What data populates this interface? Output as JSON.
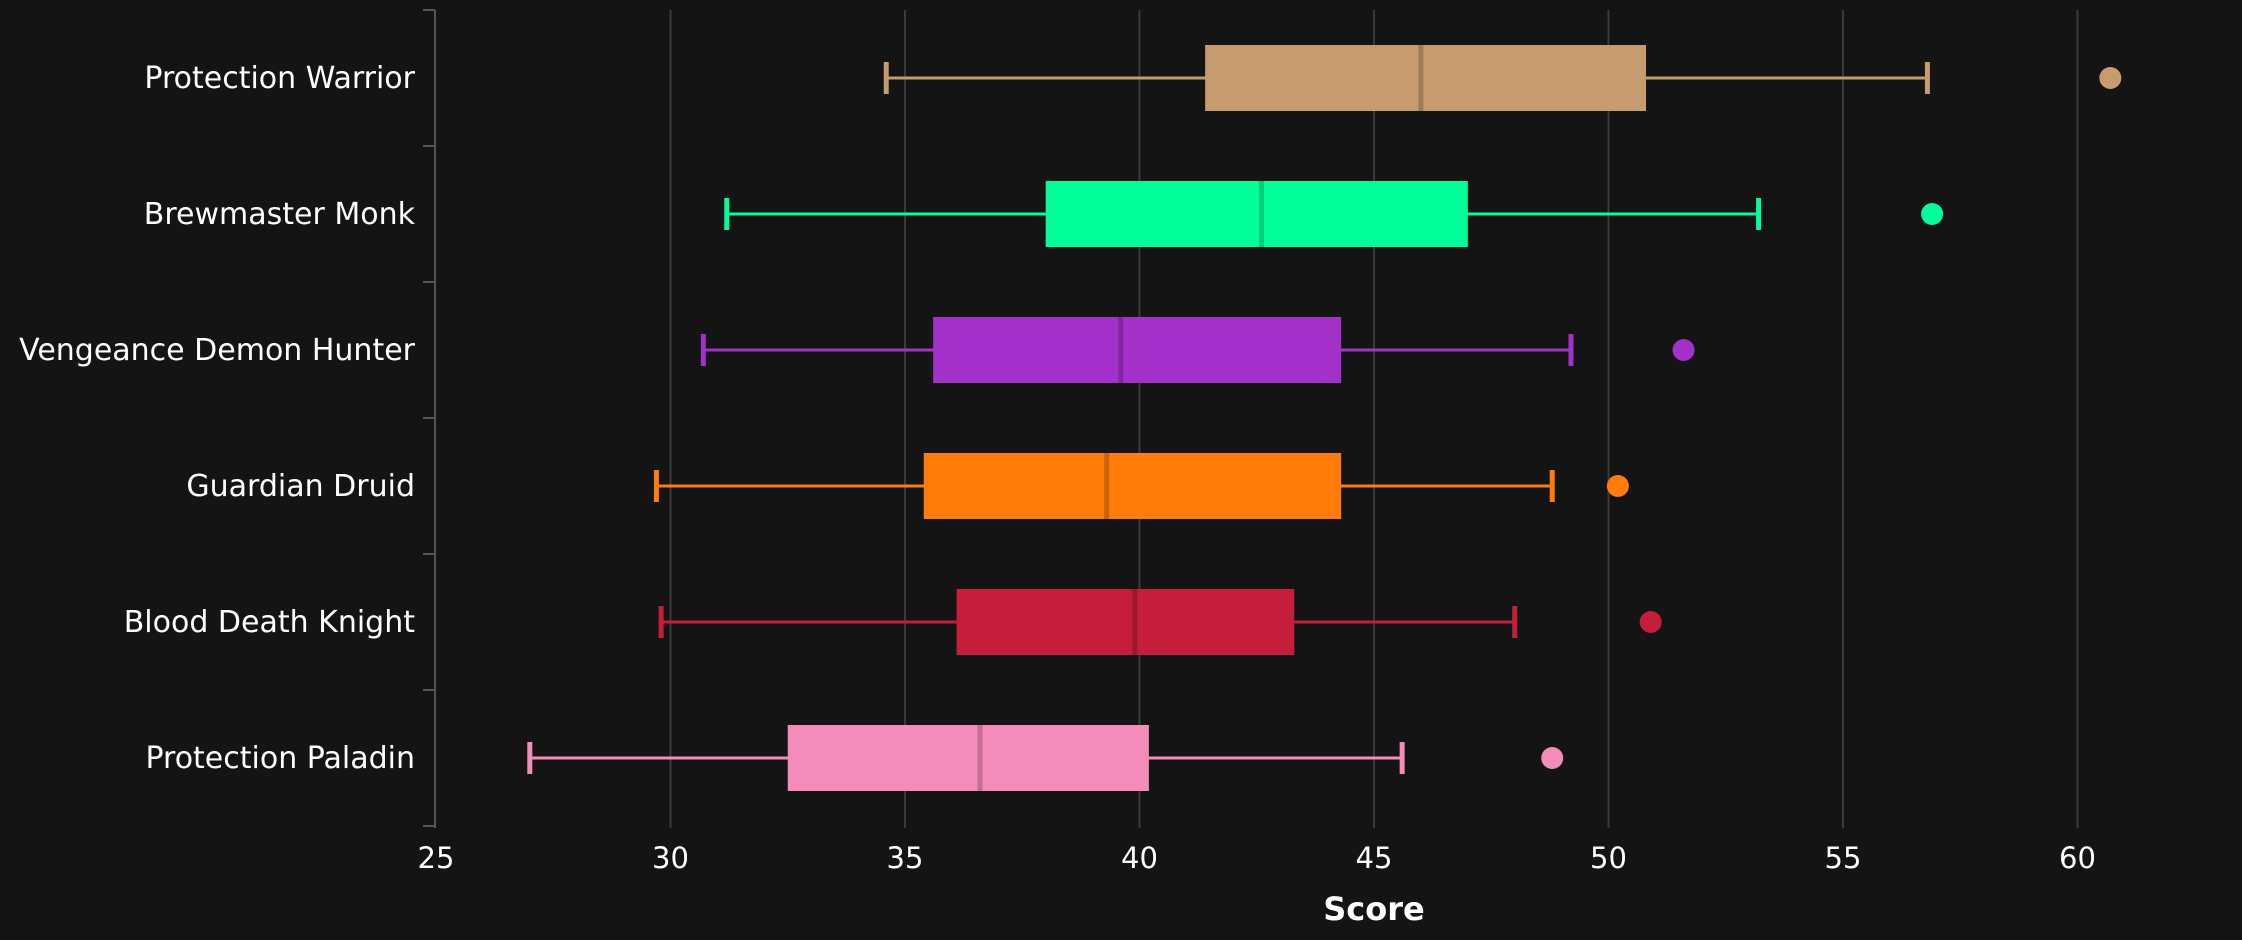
{
  "chart_data": {
    "type": "boxplot",
    "orientation": "horizontal",
    "xlabel": "Score",
    "xlim": [
      25,
      62.5
    ],
    "xticks": [
      25,
      30,
      35,
      40,
      45,
      50,
      55,
      60
    ],
    "grid": true,
    "categories": [
      "Protection Warrior",
      "Brewmaster Monk",
      "Vengeance Demon Hunter",
      "Guardian Druid",
      "Blood Death Knight",
      "Protection Paladin"
    ],
    "series": [
      {
        "label": "Protection Warrior",
        "color": "#C69B6D",
        "median_color": "#9E7C57",
        "whisker_low": 34.6,
        "q1": 41.4,
        "median": 46.0,
        "q3": 50.8,
        "whisker_high": 56.8,
        "outliers": [
          60.7
        ]
      },
      {
        "label": "Brewmaster Monk",
        "color": "#00FF98",
        "median_color": "#00CC79",
        "whisker_low": 31.2,
        "q1": 38.0,
        "median": 42.6,
        "q3": 47.0,
        "whisker_high": 53.2,
        "outliers": [
          56.9
        ]
      },
      {
        "label": "Vengeance Demon Hunter",
        "color": "#A330C9",
        "median_color": "#8226A0",
        "whisker_low": 30.7,
        "q1": 35.6,
        "median": 39.6,
        "q3": 44.3,
        "whisker_high": 49.2,
        "outliers": [
          51.6
        ]
      },
      {
        "label": "Guardian Druid",
        "color": "#FF7C0A",
        "median_color": "#CC6308",
        "whisker_low": 29.7,
        "q1": 35.4,
        "median": 39.3,
        "q3": 44.3,
        "whisker_high": 48.8,
        "outliers": [
          50.2
        ]
      },
      {
        "label": "Blood Death Knight",
        "color": "#C41E3A",
        "median_color": "#9C182E",
        "whisker_low": 29.8,
        "q1": 36.1,
        "median": 39.9,
        "q3": 43.3,
        "whisker_high": 48.0,
        "outliers": [
          50.9
        ]
      },
      {
        "label": "Protection Paladin",
        "color": "#F48CBA",
        "median_color": "#C37094",
        "whisker_low": 27.0,
        "q1": 32.5,
        "median": 36.6,
        "q3": 40.2,
        "whisker_high": 45.6,
        "outliers": [
          48.8
        ]
      }
    ]
  }
}
